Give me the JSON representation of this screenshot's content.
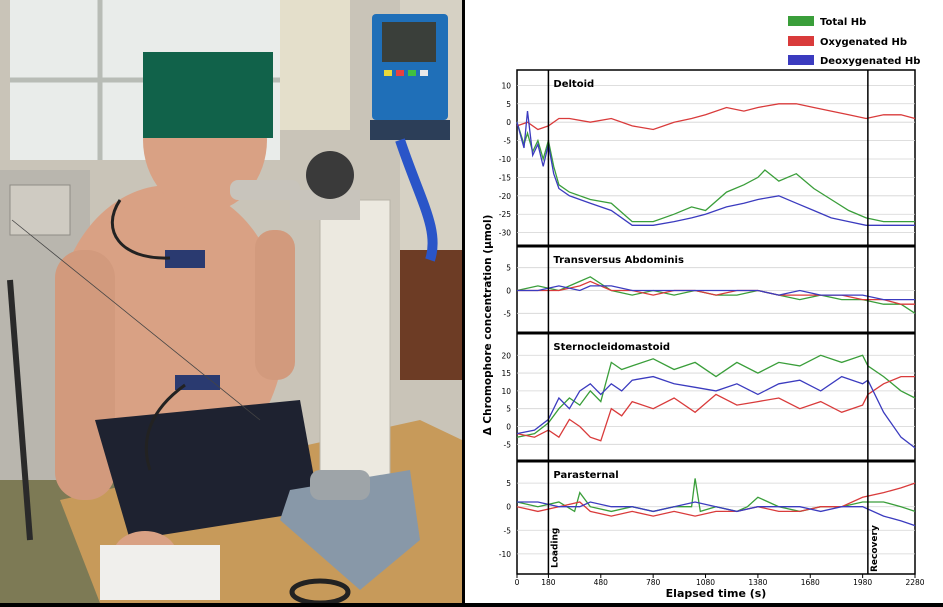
{
  "legend": [
    {
      "name": "Total Hb",
      "color": "#3a9e3a"
    },
    {
      "name": "Oxygenated Hb",
      "color": "#d93b3b"
    },
    {
      "name": "Deoxygenated Hb",
      "color": "#3b3bbf"
    }
  ],
  "ylabel": "Δ Chromophore concentration (μmol)",
  "xlabel": "Elapsed time (s)",
  "x_ticks": [
    "0",
    "180",
    "480",
    "780",
    "1080",
    "1380",
    "1680",
    "1980",
    "2280"
  ],
  "event_labels": {
    "loading": "Loading",
    "recovery": "Recovery"
  },
  "chart_data": {
    "type": "line",
    "x_range": [
      0,
      2280
    ],
    "events": {
      "loading_start": 180,
      "recovery_start": 2010
    },
    "panels": [
      {
        "title": "Deltoid",
        "yticks": [
          "10",
          "5",
          "0",
          "-5",
          "-10",
          "-15",
          "-20",
          "-25",
          "-30"
        ],
        "ylim": [
          -32,
          12
        ],
        "series": [
          {
            "name": "Total Hb",
            "x": [
              0,
              40,
              60,
              90,
              120,
              150,
              180,
              210,
              240,
              300,
              420,
              540,
              660,
              780,
              900,
              1000,
              1080,
              1200,
              1300,
              1380,
              1420,
              1500,
              1600,
              1700,
              1800,
              1900,
              2000,
              2100,
              2200,
              2280
            ],
            "y": [
              0,
              -6,
              -3,
              -8,
              -5,
              -10,
              -5,
              -12,
              -17,
              -19,
              -21,
              -22,
              -27,
              -27,
              -25,
              -23,
              -24,
              -19,
              -17,
              -15,
              -13,
              -16,
              -14,
              -18,
              -21,
              -24,
              -26,
              -27,
              -27,
              -27
            ]
          },
          {
            "name": "Oxygenated Hb",
            "x": [
              0,
              60,
              120,
              180,
              240,
              300,
              420,
              540,
              660,
              780,
              900,
              1000,
              1080,
              1200,
              1300,
              1380,
              1500,
              1600,
              1700,
              1800,
              1900,
              2000,
              2100,
              2200,
              2280
            ],
            "y": [
              -1,
              0,
              -2,
              -1,
              1,
              1,
              0,
              1,
              -1,
              -2,
              0,
              1,
              2,
              4,
              3,
              4,
              5,
              5,
              4,
              3,
              2,
              1,
              2,
              2,
              1
            ]
          },
          {
            "name": "Deoxygenated Hb",
            "x": [
              0,
              40,
              60,
              90,
              120,
              150,
              180,
              210,
              240,
              300,
              420,
              540,
              660,
              780,
              900,
              1000,
              1080,
              1200,
              1300,
              1380,
              1500,
              1600,
              1700,
              1800,
              1900,
              2000,
              2100,
              2200,
              2280
            ],
            "y": [
              0,
              -7,
              3,
              -9,
              -6,
              -12,
              -6,
              -14,
              -18,
              -20,
              -22,
              -24,
              -28,
              -28,
              -27,
              -26,
              -25,
              -23,
              -22,
              -21,
              -20,
              -22,
              -24,
              -26,
              -27,
              -28,
              -28,
              -28,
              -28
            ]
          }
        ]
      },
      {
        "title": "Transversus Abdominis",
        "yticks": [
          "5",
          "0",
          "-5"
        ],
        "ylim": [
          -8,
          8
        ],
        "series": [
          {
            "name": "Total Hb",
            "x": [
              0,
              120,
              240,
              360,
              420,
              540,
              660,
              780,
              900,
              1020,
              1140,
              1260,
              1380,
              1500,
              1620,
              1740,
              1860,
              1980,
              2100,
              2200,
              2280
            ],
            "y": [
              0,
              1,
              0,
              2,
              3,
              0,
              -1,
              0,
              -1,
              0,
              -1,
              -1,
              0,
              -1,
              -2,
              -1,
              -2,
              -2,
              -3,
              -3,
              -5
            ]
          },
          {
            "name": "Oxygenated Hb",
            "x": [
              0,
              120,
              240,
              360,
              420,
              540,
              660,
              780,
              900,
              1020,
              1140,
              1260,
              1380,
              1500,
              1620,
              1740,
              1860,
              1980,
              2100,
              2200,
              2280
            ],
            "y": [
              0,
              0,
              0,
              1,
              2,
              0,
              0,
              -1,
              0,
              0,
              -1,
              0,
              0,
              -1,
              -1,
              -1,
              -1,
              -2,
              -2,
              -3,
              -3
            ]
          },
          {
            "name": "Deoxygenated Hb",
            "x": [
              0,
              120,
              240,
              360,
              420,
              540,
              660,
              780,
              900,
              1020,
              1140,
              1260,
              1380,
              1500,
              1620,
              1740,
              1860,
              1980,
              2100,
              2200,
              2280
            ],
            "y": [
              0,
              0,
              1,
              0,
              1,
              1,
              0,
              0,
              0,
              0,
              0,
              0,
              0,
              -1,
              0,
              -1,
              -1,
              -1,
              -2,
              -2,
              -2
            ]
          }
        ]
      },
      {
        "title": "Sternocleidomastoid",
        "yticks": [
          "20",
          "15",
          "10",
          "5",
          "0",
          "-5"
        ],
        "ylim": [
          -8,
          24
        ],
        "series": [
          {
            "name": "Total Hb",
            "x": [
              0,
              100,
              180,
              240,
              300,
              360,
              420,
              480,
              540,
              600,
              660,
              780,
              900,
              1020,
              1140,
              1260,
              1380,
              1500,
              1620,
              1740,
              1860,
              1980,
              2010,
              2100,
              2200,
              2280
            ],
            "y": [
              -3,
              -2,
              1,
              5,
              8,
              6,
              10,
              7,
              18,
              16,
              17,
              19,
              16,
              18,
              14,
              18,
              15,
              18,
              17,
              20,
              18,
              20,
              17,
              14,
              10,
              8
            ]
          },
          {
            "name": "Oxygenated Hb",
            "x": [
              0,
              100,
              180,
              240,
              300,
              360,
              420,
              480,
              540,
              600,
              660,
              780,
              900,
              1020,
              1140,
              1260,
              1380,
              1500,
              1620,
              1740,
              1860,
              1980,
              2010,
              2100,
              2200,
              2280
            ],
            "y": [
              -2,
              -3,
              -1,
              -3,
              2,
              0,
              -3,
              -4,
              5,
              3,
              7,
              5,
              8,
              4,
              9,
              6,
              7,
              8,
              5,
              7,
              4,
              6,
              9,
              12,
              14,
              14
            ]
          },
          {
            "name": "Deoxygenated Hb",
            "x": [
              0,
              100,
              180,
              240,
              300,
              360,
              420,
              480,
              540,
              600,
              660,
              780,
              900,
              1020,
              1140,
              1260,
              1380,
              1500,
              1620,
              1740,
              1860,
              1980,
              2010,
              2100,
              2200,
              2280
            ],
            "y": [
              -2,
              -1,
              2,
              8,
              5,
              10,
              12,
              9,
              12,
              10,
              13,
              14,
              12,
              11,
              10,
              12,
              9,
              12,
              13,
              10,
              14,
              12,
              13,
              4,
              -3,
              -6
            ]
          }
        ]
      },
      {
        "title": "Parasternal",
        "yticks": [
          "5",
          "0",
          "-5",
          "-10"
        ],
        "ylim": [
          -13,
          8
        ],
        "series": [
          {
            "name": "Total Hb",
            "x": [
              0,
              120,
              240,
              330,
              360,
              420,
              540,
              660,
              780,
              900,
              1000,
              1020,
              1050,
              1140,
              1260,
              1320,
              1380,
              1500,
              1620,
              1740,
              1860,
              1980,
              2100,
              2200,
              2280
            ],
            "y": [
              1,
              0,
              1,
              -1,
              3,
              0,
              -1,
              0,
              -1,
              0,
              0,
              6,
              -1,
              0,
              -1,
              0,
              2,
              0,
              -1,
              0,
              0,
              1,
              1,
              0,
              -1
            ]
          },
          {
            "name": "Oxygenated Hb",
            "x": [
              0,
              120,
              240,
              360,
              420,
              540,
              660,
              780,
              900,
              1020,
              1140,
              1260,
              1380,
              1500,
              1620,
              1740,
              1860,
              1980,
              2100,
              2200,
              2280
            ],
            "y": [
              0,
              -1,
              0,
              1,
              -1,
              -2,
              -1,
              -2,
              -1,
              -2,
              -1,
              -1,
              0,
              -1,
              -1,
              0,
              0,
              2,
              3,
              4,
              5
            ]
          },
          {
            "name": "Deoxygenated Hb",
            "x": [
              0,
              120,
              240,
              360,
              420,
              540,
              660,
              780,
              900,
              1020,
              1140,
              1260,
              1380,
              1500,
              1620,
              1740,
              1860,
              1980,
              2100,
              2200,
              2280
            ],
            "y": [
              1,
              1,
              0,
              0,
              1,
              0,
              0,
              -1,
              0,
              1,
              0,
              -1,
              0,
              0,
              0,
              -1,
              0,
              0,
              -2,
              -3,
              -4
            ]
          }
        ]
      }
    ]
  }
}
